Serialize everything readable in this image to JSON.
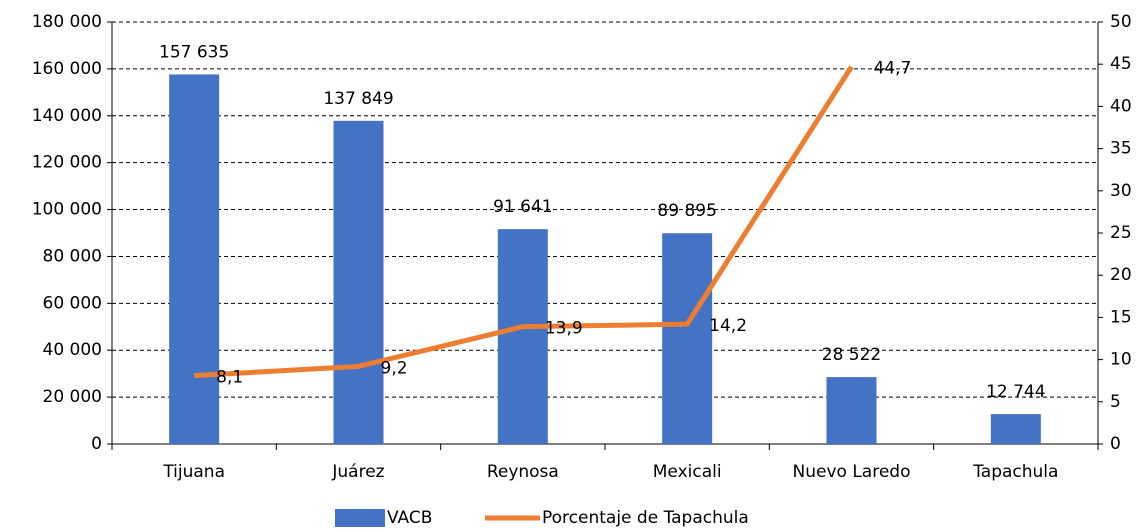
{
  "chart_data": {
    "type": "bar",
    "categories": [
      "Tijuana",
      "Juárez",
      "Reynosa",
      "Mexicali",
      "Nuevo Laredo",
      "Tapachula"
    ],
    "series": [
      {
        "name": "VACB",
        "type": "bar",
        "color": "#4472c4",
        "values": [
          157635,
          137849,
          91641,
          89895,
          28522,
          12744
        ],
        "value_labels": [
          "157 635",
          "137 849",
          "91 641",
          "89 895",
          "28 522",
          "12 744"
        ]
      },
      {
        "name": "Porcentaje de Tapachula",
        "type": "line",
        "axis": "y2",
        "color": "#ed7d31",
        "values": [
          8.1,
          9.2,
          13.9,
          14.2,
          44.7,
          null
        ],
        "value_labels": [
          "8,1",
          "9,2",
          "13,9",
          "14,2",
          "44,7",
          null
        ]
      }
    ],
    "ylim": [
      0,
      180000
    ],
    "yticks": [
      0,
      {
        "value": 20000,
        "label": "20 000"
      },
      {
        "value": 40000,
        "label": "40 000"
      },
      {
        "value": 60000,
        "label": "60 000"
      },
      {
        "value": 80000,
        "label": "80 000"
      },
      {
        "value": 100000,
        "label": "100 000"
      },
      {
        "value": 120000,
        "label": "120 000"
      },
      {
        "value": 140000,
        "label": "140 000"
      },
      {
        "value": 160000,
        "label": "160 000"
      },
      {
        "value": 180000,
        "label": "180 000"
      }
    ],
    "y2lim": [
      0,
      50
    ],
    "y2ticks": [
      0,
      5,
      10,
      15,
      20,
      25,
      30,
      35,
      40,
      45,
      50
    ],
    "grid": true,
    "legend": "bottom"
  }
}
